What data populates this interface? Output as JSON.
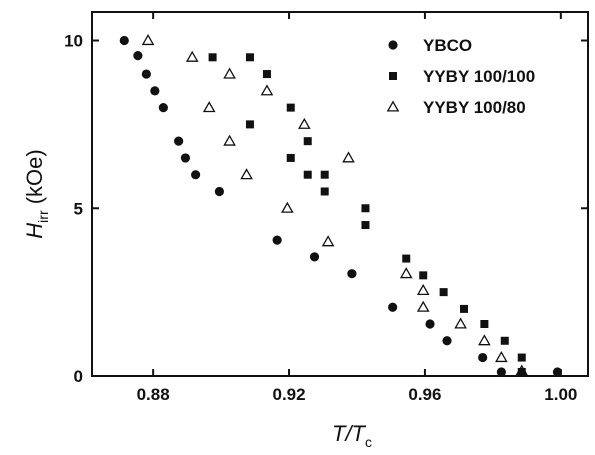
{
  "chart_data": {
    "type": "scatter",
    "title": "",
    "xlabel_main": "T/T",
    "xlabel_sub": "c",
    "ylabel_main": "H",
    "ylabel_sub": "irr",
    "ylabel_unit": "(kOe)",
    "xlim": [
      0.862,
      1.008
    ],
    "ylim": [
      0,
      10.85
    ],
    "x_ticks": [
      0.88,
      0.92,
      0.96,
      1.0
    ],
    "x_tick_labels": [
      "0.88",
      "0.92",
      "0.96",
      "1.00"
    ],
    "y_ticks": [
      0,
      5,
      10
    ],
    "y_tick_labels": [
      "0",
      "5",
      "10"
    ],
    "grid": false,
    "legend_position": "top-right",
    "series": [
      {
        "name": "YBCO",
        "marker": "circle",
        "color": "#111111",
        "points": [
          [
            0.8715,
            10.0
          ],
          [
            0.8755,
            9.55
          ],
          [
            0.878,
            9.0
          ],
          [
            0.8805,
            8.5
          ],
          [
            0.883,
            8.0
          ],
          [
            0.8875,
            7.0
          ],
          [
            0.8895,
            6.5
          ],
          [
            0.8925,
            6.0
          ],
          [
            0.8995,
            5.5
          ],
          [
            0.9165,
            4.05
          ],
          [
            0.9275,
            3.55
          ],
          [
            0.9385,
            3.05
          ],
          [
            0.9505,
            2.05
          ],
          [
            0.9615,
            1.55
          ],
          [
            0.9665,
            1.05
          ],
          [
            0.977,
            0.55
          ],
          [
            0.9825,
            0.12
          ],
          [
            0.999,
            0.12
          ]
        ]
      },
      {
        "name": "YYBY 100/100",
        "marker": "square",
        "color": "#111111",
        "points": [
          [
            0.8975,
            9.5
          ],
          [
            0.9085,
            9.5
          ],
          [
            0.9135,
            9.0
          ],
          [
            0.9085,
            7.5
          ],
          [
            0.9205,
            8.0
          ],
          [
            0.9205,
            6.5
          ],
          [
            0.9255,
            7.0
          ],
          [
            0.9255,
            6.0
          ],
          [
            0.9305,
            6.0
          ],
          [
            0.9305,
            5.5
          ],
          [
            0.9425,
            5.0
          ],
          [
            0.9425,
            4.5
          ],
          [
            0.9545,
            3.5
          ],
          [
            0.9595,
            3.0
          ],
          [
            0.9655,
            2.5
          ],
          [
            0.9715,
            2.0
          ],
          [
            0.9775,
            1.55
          ],
          [
            0.9835,
            1.05
          ],
          [
            0.9885,
            0.55
          ],
          [
            0.9885,
            0.12
          ]
        ]
      },
      {
        "name": "YYBY 100/80",
        "marker": "triangle-open",
        "color": "#111111",
        "points": [
          [
            0.8785,
            10.0
          ],
          [
            0.8915,
            9.5
          ],
          [
            0.9025,
            9.0
          ],
          [
            0.8965,
            8.0
          ],
          [
            0.9025,
            7.0
          ],
          [
            0.9135,
            8.5
          ],
          [
            0.9245,
            7.5
          ],
          [
            0.9075,
            6.0
          ],
          [
            0.9195,
            5.0
          ],
          [
            0.9315,
            4.0
          ],
          [
            0.9375,
            6.5
          ],
          [
            0.9545,
            3.05
          ],
          [
            0.9595,
            2.55
          ],
          [
            0.9595,
            2.05
          ],
          [
            0.9705,
            1.55
          ],
          [
            0.9775,
            1.05
          ],
          [
            0.9825,
            0.55
          ],
          [
            0.9885,
            0.15
          ]
        ]
      }
    ]
  }
}
